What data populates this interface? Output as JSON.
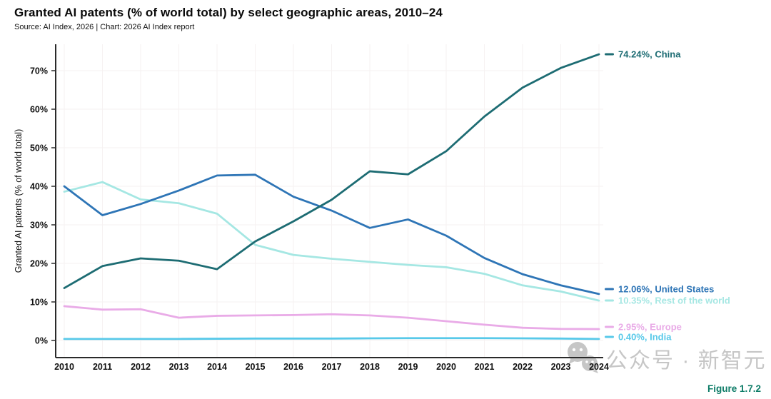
{
  "header": {
    "title": "Granted AI patents (% of world total) by select geographic areas, 2010–24",
    "source_line": "Source: AI Index, 2026 | Chart: 2026 AI Index report"
  },
  "watermark": {
    "icon": "wechat-icon",
    "text": "公众号 · 新智元"
  },
  "figure_label": "Figure 1.7.2",
  "chart_data": {
    "type": "line",
    "title": "Granted AI patents (% of world total) by select geographic areas, 2010–24",
    "xlabel": "",
    "ylabel": "Granted AI patents (% of world total)",
    "x": [
      2010,
      2011,
      2012,
      2013,
      2014,
      2015,
      2016,
      2017,
      2018,
      2019,
      2020,
      2021,
      2022,
      2023,
      2024
    ],
    "ylim": [
      0,
      75
    ],
    "yticks": [
      0,
      10,
      20,
      30,
      40,
      50,
      60,
      70
    ],
    "ytick_suffix": "%",
    "grid": true,
    "legend_position": "right-end-labels",
    "series": [
      {
        "name": "Rest of the world",
        "color": "#a5e7e3",
        "end_label": "10.35%, Rest of the world",
        "values": [
          38.6,
          41.1,
          36.6,
          35.6,
          32.9,
          24.8,
          22.2,
          21.2,
          20.4,
          19.6,
          19.0,
          17.3,
          14.3,
          12.7,
          10.35
        ]
      },
      {
        "name": "Europe",
        "color": "#e9abe7",
        "end_label": "2.95%, Europe",
        "values": [
          8.9,
          8.0,
          8.1,
          5.9,
          6.4,
          6.5,
          6.6,
          6.8,
          6.5,
          5.9,
          5.0,
          4.1,
          3.3,
          3.0,
          2.95
        ]
      },
      {
        "name": "India",
        "color": "#58c9e9",
        "end_label": "0.40%, India",
        "values": [
          0.4,
          0.4,
          0.4,
          0.4,
          0.45,
          0.5,
          0.5,
          0.5,
          0.55,
          0.6,
          0.6,
          0.6,
          0.55,
          0.5,
          0.4
        ]
      },
      {
        "name": "United States",
        "color": "#2e75b6",
        "end_label": "12.06%, United States",
        "values": [
          40.0,
          32.5,
          35.4,
          38.9,
          42.8,
          43.0,
          37.3,
          33.7,
          29.2,
          31.4,
          27.2,
          21.4,
          17.2,
          14.3,
          12.06
        ]
      },
      {
        "name": "China",
        "color": "#1d6c73",
        "end_label": "74.24%, China",
        "values": [
          13.6,
          19.3,
          21.3,
          20.7,
          18.5,
          25.7,
          30.9,
          36.5,
          43.9,
          43.1,
          49.1,
          58.1,
          65.6,
          70.7,
          74.24
        ]
      }
    ]
  }
}
